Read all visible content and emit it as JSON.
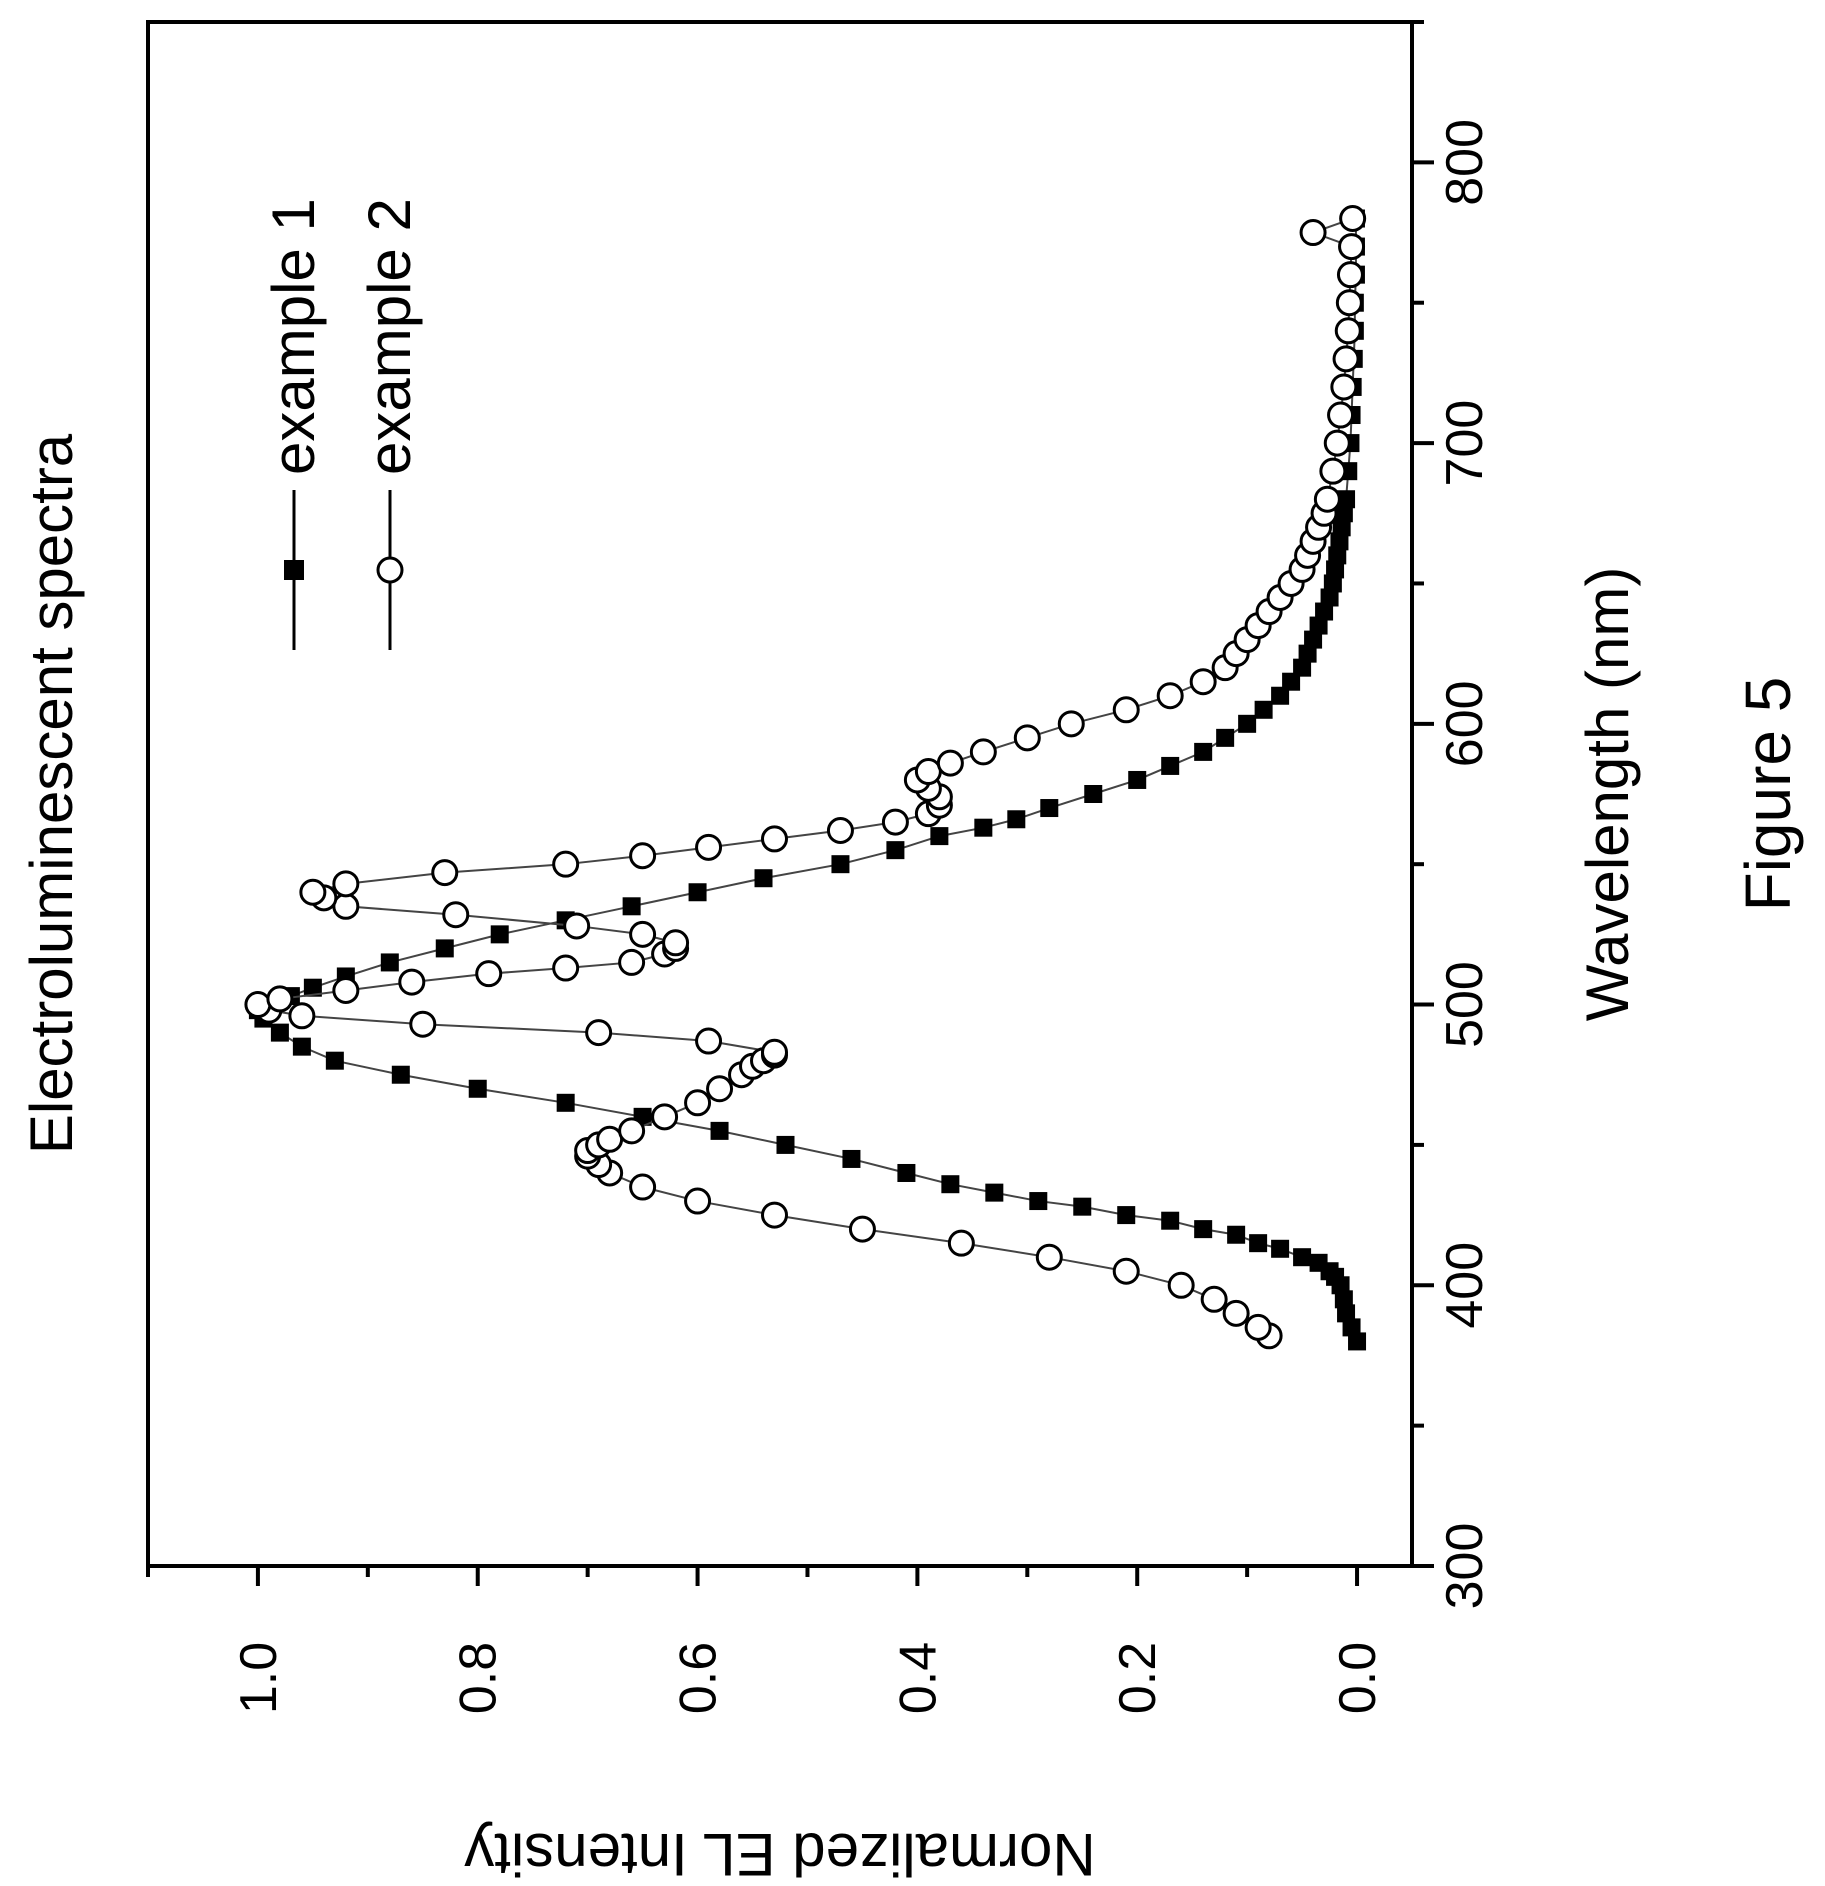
{
  "chart_data": {
    "type": "scatter",
    "title": "Electroluminescent spectra",
    "xlabel": "Wavelength (nm)",
    "ylabel": "Normalized EL Intensity",
    "xlim": [
      300,
      850
    ],
    "ylim": [
      -0.05,
      1.1
    ],
    "x_ticks": [
      300,
      400,
      500,
      600,
      700,
      800
    ],
    "x_tick_labels": [
      "300",
      "400",
      "500",
      "600",
      "700",
      "800"
    ],
    "y_ticks": [
      0.0,
      0.2,
      0.4,
      0.6,
      0.8,
      1.0
    ],
    "y_tick_labels": [
      "0.0",
      "0.2",
      "0.4",
      "0.6",
      "0.8",
      "1.0"
    ],
    "legend_position": "top-right",
    "orientation": "rotated 90° clockwise on the page",
    "grid": false,
    "series": [
      {
        "name": "example 1",
        "marker": "filled-square",
        "x": [
          380,
          385,
          390,
          395,
          400,
          403,
          405,
          408,
          410,
          413,
          415,
          418,
          420,
          423,
          425,
          428,
          430,
          433,
          436,
          440,
          445,
          450,
          455,
          460,
          465,
          470,
          475,
          480,
          485,
          490,
          495,
          498,
          500,
          503,
          506,
          510,
          515,
          520,
          525,
          530,
          535,
          540,
          545,
          550,
          555,
          560,
          563,
          566,
          570,
          575,
          580,
          585,
          590,
          595,
          600,
          605,
          610,
          615,
          620,
          625,
          630,
          635,
          640,
          645,
          650,
          655,
          660,
          665,
          670,
          675,
          680,
          690,
          700,
          710,
          720,
          730,
          740,
          750,
          760,
          770,
          780
        ],
        "y": [
          0.0,
          0.005,
          0.01,
          0.012,
          0.015,
          0.02,
          0.025,
          0.035,
          0.05,
          0.07,
          0.09,
          0.11,
          0.14,
          0.17,
          0.21,
          0.25,
          0.29,
          0.33,
          0.37,
          0.41,
          0.46,
          0.52,
          0.58,
          0.65,
          0.72,
          0.8,
          0.87,
          0.93,
          0.96,
          0.98,
          0.995,
          1.0,
          0.99,
          0.97,
          0.95,
          0.92,
          0.88,
          0.83,
          0.78,
          0.72,
          0.66,
          0.6,
          0.54,
          0.47,
          0.42,
          0.38,
          0.34,
          0.31,
          0.28,
          0.24,
          0.2,
          0.17,
          0.14,
          0.12,
          0.1,
          0.085,
          0.07,
          0.06,
          0.05,
          0.045,
          0.04,
          0.035,
          0.03,
          0.025,
          0.022,
          0.02,
          0.018,
          0.016,
          0.014,
          0.012,
          0.01,
          0.008,
          0.006,
          0.005,
          0.004,
          0.003,
          0.002,
          0.002,
          0.001,
          0.001,
          0.001
        ]
      },
      {
        "name": "example 2",
        "marker": "open-circle",
        "x": [
          382,
          385,
          390,
          395,
          400,
          405,
          410,
          415,
          420,
          425,
          430,
          435,
          440,
          443,
          446,
          448,
          450,
          452,
          455,
          460,
          465,
          470,
          475,
          478,
          480,
          482,
          483,
          487,
          490,
          493,
          496,
          498,
          500,
          502,
          505,
          508,
          511,
          513,
          515,
          518,
          520,
          522,
          525,
          528,
          532,
          535,
          538,
          540,
          543,
          547,
          550,
          553,
          556,
          559,
          562,
          565,
          568,
          571,
          574,
          577,
          580,
          583,
          586,
          590,
          595,
          600,
          605,
          610,
          615,
          620,
          625,
          630,
          635,
          640,
          645,
          650,
          655,
          660,
          665,
          670,
          675,
          680,
          690,
          700,
          710,
          720,
          730,
          740,
          750,
          760,
          770,
          775,
          780
        ],
        "y": [
          0.08,
          0.09,
          0.11,
          0.13,
          0.16,
          0.21,
          0.28,
          0.36,
          0.45,
          0.53,
          0.6,
          0.65,
          0.68,
          0.69,
          0.7,
          0.7,
          0.69,
          0.68,
          0.66,
          0.63,
          0.6,
          0.58,
          0.56,
          0.55,
          0.54,
          0.53,
          0.53,
          0.59,
          0.69,
          0.85,
          0.96,
          0.99,
          1.0,
          0.98,
          0.92,
          0.86,
          0.79,
          0.72,
          0.66,
          0.63,
          0.62,
          0.62,
          0.65,
          0.71,
          0.82,
          0.92,
          0.94,
          0.95,
          0.92,
          0.83,
          0.72,
          0.65,
          0.59,
          0.53,
          0.47,
          0.42,
          0.39,
          0.38,
          0.38,
          0.39,
          0.4,
          0.39,
          0.37,
          0.34,
          0.3,
          0.26,
          0.21,
          0.17,
          0.14,
          0.12,
          0.11,
          0.1,
          0.09,
          0.08,
          0.07,
          0.06,
          0.05,
          0.045,
          0.04,
          0.035,
          0.03,
          0.027,
          0.022,
          0.018,
          0.015,
          0.012,
          0.01,
          0.008,
          0.007,
          0.006,
          0.005,
          0.04,
          0.004
        ]
      }
    ]
  },
  "caption": "Figure 5",
  "colors": {
    "ink": "#000000",
    "background": "#ffffff",
    "line": "#444444"
  }
}
